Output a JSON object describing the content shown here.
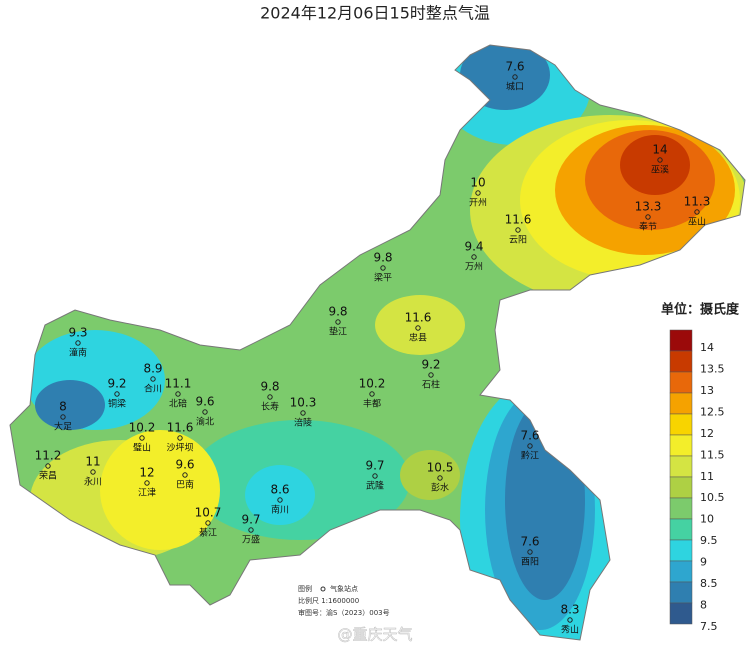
{
  "title": "2024年12月06日15时整点气温",
  "stations": [
    {
      "name": "城口",
      "value": 7.6
    },
    {
      "name": "巫溪",
      "value": 14
    },
    {
      "name": "开州",
      "value": 10
    },
    {
      "name": "巫山",
      "value": 11.3
    },
    {
      "name": "奉节",
      "value": 13.3
    },
    {
      "name": "云阳",
      "value": 11.6
    },
    {
      "name": "万州",
      "value": 9.4
    },
    {
      "name": "梁平",
      "value": 9.8
    },
    {
      "name": "垫江",
      "value": 9.8
    },
    {
      "name": "忠县",
      "value": 11.6
    },
    {
      "name": "潼南",
      "value": 9.3
    },
    {
      "name": "合川",
      "value": 8.9
    },
    {
      "name": "石柱",
      "value": 9.2
    },
    {
      "name": "铜梁",
      "value": 9.2
    },
    {
      "name": "北碚",
      "value": 11.1
    },
    {
      "name": "长寿",
      "value": 9.8
    },
    {
      "name": "丰都",
      "value": 10.2
    },
    {
      "name": "大足",
      "value": 8
    },
    {
      "name": "渝北",
      "value": 9.6
    },
    {
      "name": "涪陵",
      "value": 10.3
    },
    {
      "name": "璧山",
      "value": 10.2
    },
    {
      "name": "沙坪坝",
      "value": 11.6
    },
    {
      "name": "黔江",
      "value": 7.6
    },
    {
      "name": "荣昌",
      "value": 11.2
    },
    {
      "name": "永川",
      "value": 11
    },
    {
      "name": "武隆",
      "value": 9.7
    },
    {
      "name": "巴南",
      "value": 9.6
    },
    {
      "name": "彭水",
      "value": 10.5
    },
    {
      "name": "江津",
      "value": 12
    },
    {
      "name": "南川",
      "value": 8.6
    },
    {
      "name": "綦江",
      "value": 10.7
    },
    {
      "name": "万盛",
      "value": 9.7
    },
    {
      "name": "酉阳",
      "value": 7.6
    },
    {
      "name": "秀山",
      "value": 8.3
    }
  ],
  "legend": {
    "title": "单位：摄氏度",
    "labels": [
      14,
      13.5,
      13,
      12.5,
      12,
      11.5,
      11,
      10.5,
      10,
      9.5,
      9,
      8.5,
      8,
      7.5
    ],
    "colors": [
      "#9b0a0a",
      "#c83a00",
      "#e8680a",
      "#f5a200",
      "#f8d400",
      "#f3ee2a",
      "#d4e443",
      "#aed044",
      "#7ccb6c",
      "#45d2a2",
      "#2ed4e0",
      "#2ea6cf",
      "#2f7fb0",
      "#2f5a8e"
    ]
  },
  "notes": {
    "legend_label": "图例",
    "station_label": "气象站点",
    "scale": "比例尺  1:1600000",
    "approval": "审图号：渝S（2023）003号"
  },
  "watermark": "@重庆天气"
}
